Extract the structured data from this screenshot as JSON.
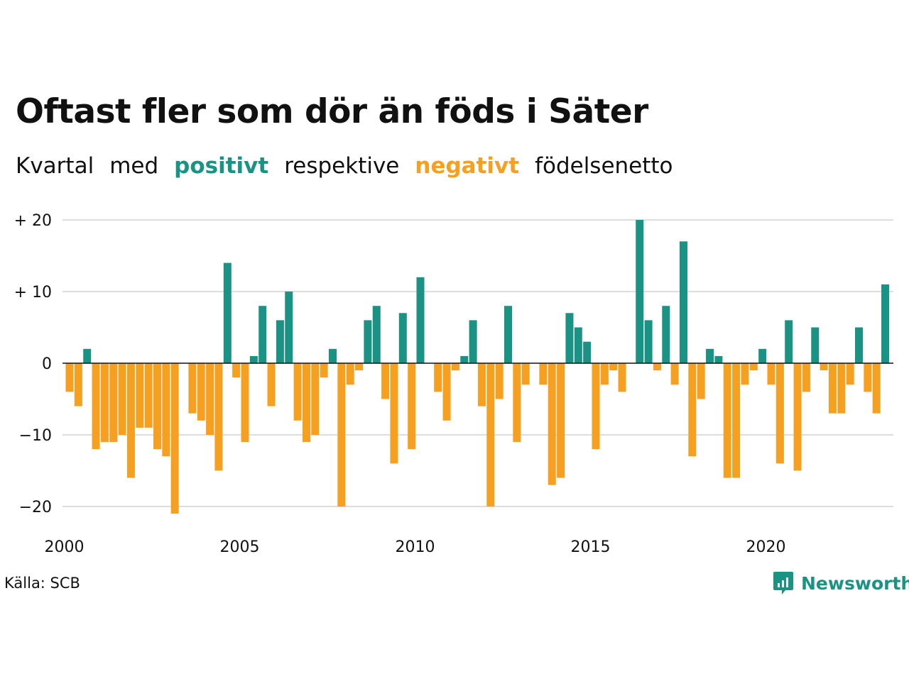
{
  "colors": {
    "positive": "#1a9384",
    "negative": "#f5a020",
    "grid": "#dddddd",
    "text": "#111111"
  },
  "header": {
    "title": "Oftast fler som dör än föds i Säter",
    "subtitle_words": [
      "Kvartal",
      "med",
      "positivt",
      "respektive",
      "negativt",
      "födelsenetto"
    ]
  },
  "footer": {
    "source": "Källa: SCB",
    "brand": "Newsworthy",
    "brand_icon": "newsworthy-logo-icon"
  },
  "chart_data": {
    "type": "bar",
    "x_start": 2000,
    "frequency": "quarterly",
    "ylim": [
      -21,
      20
    ],
    "yticks": [
      20,
      10,
      0,
      -10,
      -20
    ],
    "ytick_labels": [
      "+ 20",
      "+ 10",
      "0",
      "−10",
      "−20"
    ],
    "xticks": [
      2000,
      2005,
      2010,
      2015,
      2020
    ],
    "xtick_labels": [
      "2000",
      "2005",
      "2010",
      "2015",
      "2020"
    ],
    "grid": true,
    "values": [
      -4,
      -6,
      2,
      -12,
      -11,
      -11,
      -10,
      -16,
      -9,
      -9,
      -12,
      -13,
      -21,
      0,
      -7,
      -8,
      -10,
      -15,
      14,
      -2,
      -11,
      1,
      8,
      -6,
      6,
      10,
      -8,
      -11,
      -10,
      -2,
      2,
      -20,
      -3,
      -1,
      6,
      8,
      -5,
      -14,
      7,
      -12,
      12,
      0,
      -4,
      -8,
      -1,
      1,
      6,
      -6,
      -20,
      -5,
      8,
      -11,
      -3,
      0,
      -3,
      -17,
      -16,
      7,
      5,
      3,
      -12,
      -3,
      -1,
      -4,
      0,
      20,
      6,
      -1,
      8,
      -3,
      17,
      -13,
      -5,
      2,
      1,
      -16,
      -16,
      -3,
      -1,
      2,
      -3,
      -14,
      6,
      -15,
      -4,
      5,
      -1,
      -7,
      -7,
      -3,
      5,
      -4,
      -7,
      11
    ]
  }
}
